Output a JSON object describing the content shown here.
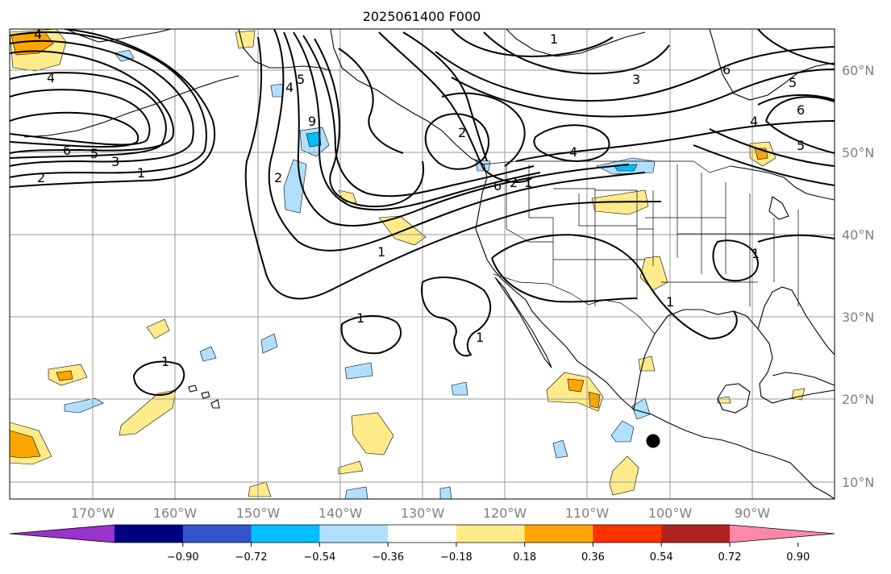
{
  "title": "2025061400 F000",
  "lat_labels": [
    "60°N",
    "50°N",
    "40°N",
    "30°N",
    "20°N",
    "10°N"
  ],
  "lon_labels": [
    "170°W",
    "160°W",
    "150°W",
    "140°W",
    "130°W",
    "120°W",
    "110°W",
    "100°W",
    "90°W"
  ],
  "colorbar": {
    "ticks": [
      "−0.90",
      "−0.72",
      "−0.54",
      "−0.36",
      "−0.18",
      "0.18",
      "0.36",
      "0.54",
      "0.72",
      "0.90"
    ],
    "colors": [
      "#9933cc",
      "#000080",
      "#3355cc",
      "#00bfff",
      "#b0e0ff",
      "#ffffff",
      "#ffeb8a",
      "#ffa500",
      "#ff3300",
      "#b22222",
      "#ff88aa"
    ]
  },
  "contour_labels": [
    "4",
    "4",
    "6",
    "5",
    "3",
    "1",
    "2",
    "4",
    "5",
    "9",
    "2",
    "1",
    "2",
    "6",
    "2",
    "1",
    "1",
    "3",
    "6",
    "5",
    "6",
    "4",
    "5",
    "4",
    "1",
    "1",
    "1",
    "1",
    "1"
  ],
  "marker": "storm-center-dot"
}
